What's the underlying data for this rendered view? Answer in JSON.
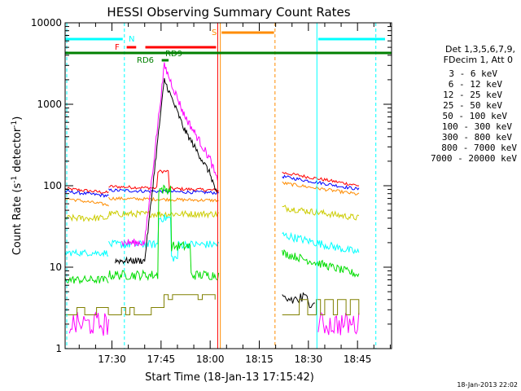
{
  "chart_data": {
    "type": "line",
    "title": "HESSI Observing Summary Count Rates",
    "xlabel": "Start Time (18-Jan-13 17:15:42)",
    "ylabel_main": "Count Rate (s",
    "ylabel_sup1": "-1",
    "ylabel_mid": " detector",
    "ylabel_sup2": "-1",
    "ylabel_end": ")",
    "yscale": "log",
    "ylim": [
      1,
      10000
    ],
    "xlim_minutes": [
      17.26,
      18.91
    ],
    "x_ticks": [
      {
        "label": "17:30",
        "m": 30
      },
      {
        "label": "17:45",
        "m": 45
      },
      {
        "label": "18:00",
        "m": 60
      },
      {
        "label": "18:15",
        "m": 75
      },
      {
        "label": "18:30",
        "m": 90
      },
      {
        "label": "18:45",
        "m": 105
      }
    ],
    "y_ticks": [
      {
        "label": "1",
        "v": 1
      },
      {
        "label": "10",
        "v": 10
      },
      {
        "label": "100",
        "v": 100
      },
      {
        "label": "1000",
        "v": 1000
      },
      {
        "label": "10000",
        "v": 10000
      }
    ],
    "legend_header": [
      "Det 1,3,5,6,7,9,",
      "FDecim 1, Att 0"
    ],
    "series": [
      {
        "name": "3 - 6 keV",
        "color": "#000000"
      },
      {
        "name": "6 - 12 keV",
        "color": "#ff00ff"
      },
      {
        "name": "12 - 25 keV",
        "color": "#00dd00"
      },
      {
        "name": "25 - 50 keV",
        "color": "#00ffff"
      },
      {
        "name": "50 - 100 keV",
        "color": "#cccc00"
      },
      {
        "name": "100 - 300 keV",
        "color": "#ff0000"
      },
      {
        "name": "300 - 800 keV",
        "color": "#0000ff"
      },
      {
        "name": "800 - 7000 keV",
        "color": "#ff8c00"
      },
      {
        "name": "7000 - 20000 keV",
        "color": "#808000"
      }
    ],
    "flags": [
      {
        "label": "N",
        "color": "#00ffff"
      },
      {
        "label": "F",
        "color": "#ff0000"
      },
      {
        "label": "S",
        "color": "#ff8c00"
      },
      {
        "label": "RD9",
        "color": "#008000"
      },
      {
        "label": "RD6",
        "color": "#008000"
      }
    ],
    "footer_date": "18-Jan-2013 22:02"
  }
}
